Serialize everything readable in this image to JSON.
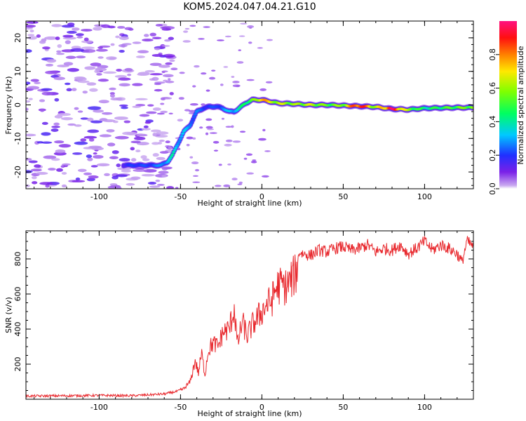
{
  "figure_title": "KOM5.2024.047.04.21.G10",
  "chart_data": [
    {
      "type": "heatmap",
      "xlabel": "Height of straight line (km)",
      "ylabel": "Frequency (Hz)",
      "xlim": [
        -145,
        130
      ],
      "ylim": [
        -25,
        25
      ],
      "x_ticks": [
        -100,
        -50,
        0,
        50,
        100
      ],
      "y_ticks": [
        -20,
        -10,
        0,
        10,
        20
      ],
      "colorbar": {
        "label": "Normalized spectral amplitude",
        "range": [
          0,
          1
        ],
        "ticks": [
          0.0,
          0.2,
          0.4,
          0.6,
          0.8
        ],
        "colormap": "rainbow (violet-blue-cyan-green-yellow-orange-red-magenta)"
      },
      "ridge": {
        "x": [
          -85,
          -78,
          -70,
          -62,
          -58,
          -55,
          -52,
          -48,
          -44,
          -40,
          -36,
          -32,
          -28,
          -24,
          -20,
          -17,
          -14,
          -10,
          -6,
          -2,
          0,
          5,
          10,
          20,
          30,
          40,
          50,
          60,
          70,
          80,
          90,
          100,
          110,
          120,
          130
        ],
        "frequency": [
          -18,
          -18,
          -18,
          -18,
          -17,
          -15,
          -12,
          -8,
          -6,
          -2,
          -1,
          -0.5,
          -0.5,
          -1,
          -2,
          -2,
          -1,
          0.5,
          1.5,
          1.5,
          1.5,
          1,
          0.5,
          0.3,
          0,
          0,
          -0.2,
          -0.4,
          -0.6,
          -1.2,
          -1.4,
          -1,
          -0.9,
          -0.8,
          -0.8
        ],
        "amplitude": [
          0.15,
          0.2,
          0.2,
          0.25,
          0.3,
          0.35,
          0.3,
          0.3,
          0.25,
          0.25,
          0.2,
          0.2,
          0.2,
          0.25,
          0.3,
          0.3,
          0.35,
          0.45,
          0.5,
          0.55,
          0.85,
          0.6,
          0.6,
          0.55,
          0.6,
          0.5,
          0.55,
          0.9,
          0.55,
          0.9,
          0.55,
          0.4,
          0.45,
          0.5,
          0.55
        ]
      }
    },
    {
      "type": "line",
      "xlabel": "Height of straight line (km)",
      "ylabel": "SNR (v/v)",
      "xlim": [
        -145,
        130
      ],
      "ylim": [
        0,
        960
      ],
      "x_ticks": [
        -100,
        -50,
        0,
        50,
        100
      ],
      "y_ticks": [
        200,
        400,
        600,
        800
      ],
      "series": [
        {
          "color": "#e8282d",
          "x": [
            -145,
            -120,
            -100,
            -80,
            -60,
            -52,
            -48,
            -44,
            -41,
            -39,
            -37,
            -35,
            -33,
            -30,
            -27,
            -24,
            -20,
            -17,
            -15,
            -12,
            -9,
            -6,
            -3,
            0,
            3,
            6,
            9,
            12,
            15,
            18,
            21,
            23,
            25,
            30,
            35,
            40,
            45,
            50,
            55,
            60,
            65,
            70,
            75,
            80,
            85,
            90,
            95,
            100,
            105,
            110,
            115,
            120,
            123,
            126,
            130
          ],
          "y": [
            18,
            20,
            22,
            20,
            30,
            45,
            60,
            100,
            220,
            150,
            260,
            140,
            280,
            320,
            300,
            380,
            400,
            520,
            310,
            440,
            360,
            420,
            460,
            500,
            540,
            560,
            640,
            650,
            640,
            680,
            720,
            840,
            830,
            820,
            850,
            840,
            860,
            870,
            850,
            860,
            880,
            840,
            860,
            850,
            880,
            830,
            860,
            900,
            850,
            880,
            860,
            830,
            780,
            900,
            870
          ]
        }
      ]
    }
  ]
}
